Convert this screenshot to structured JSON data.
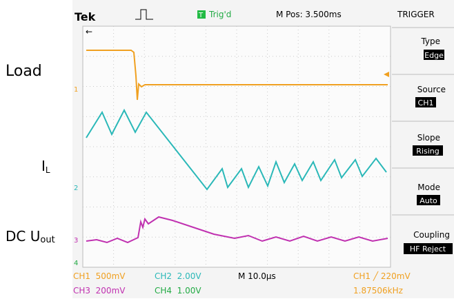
{
  "labels": {
    "load": "Load",
    "il": {
      "main": "I",
      "sub": "L"
    },
    "uout": {
      "main": "DC U",
      "sub": "out"
    }
  },
  "header": {
    "brand": "Tek",
    "trigger_state": "Trig'd",
    "trigger_icon": "T",
    "position": "M Pos: 3.500ms",
    "menu_title": "TRIGGER"
  },
  "menu": [
    {
      "label": "Type",
      "value": "Edge"
    },
    {
      "label": "Source",
      "value": "CH1"
    },
    {
      "label": "Slope",
      "value": "Rising"
    },
    {
      "label": "Mode",
      "value": "Auto"
    },
    {
      "label": "Coupling",
      "value": "HF Reject"
    }
  ],
  "markers": [
    "1",
    "2",
    "3",
    "4"
  ],
  "footer": {
    "ch1": "CH1  500mV",
    "ch2": "CH2  2.00V",
    "timebase": "M 10.0µs",
    "trigger": "CH1 ╱ 220mV",
    "ch3": "CH3  200mV",
    "ch4": "CH4  1.00V",
    "frequency": "1.87506kHz"
  }
}
